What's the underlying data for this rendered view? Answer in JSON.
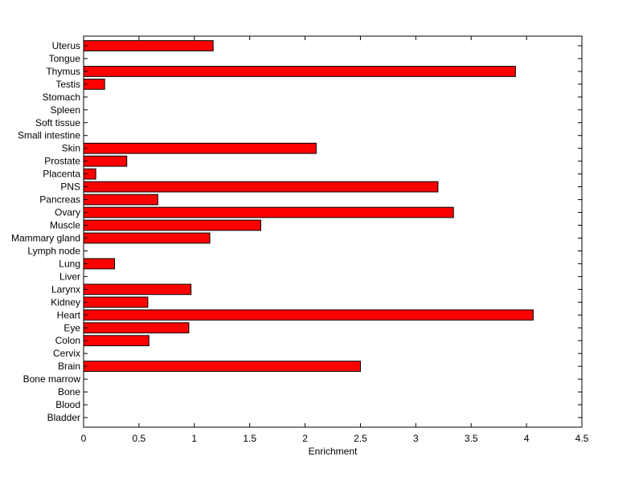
{
  "chart_data": {
    "type": "bar",
    "orientation": "horizontal",
    "xlabel": "Enrichment",
    "ylabel": "",
    "title": "",
    "xlim": [
      0,
      4.5
    ],
    "xticks": [
      "0",
      "0.5",
      "1",
      "1.5",
      "2",
      "2.5",
      "3",
      "3.5",
      "4",
      "4.5"
    ],
    "categories": [
      "Bladder",
      "Blood",
      "Bone",
      "Bone marrow",
      "Brain",
      "Cervix",
      "Colon",
      "Eye",
      "Heart",
      "Kidney",
      "Larynx",
      "Liver",
      "Lung",
      "Lymph node",
      "Mammary gland",
      "Muscle",
      "Ovary",
      "Pancreas",
      "PNS",
      "Placenta",
      "Prostate",
      "Skin",
      "Small intestine",
      "Soft tissue",
      "Spleen",
      "Stomach",
      "Testis",
      "Thymus",
      "Tongue",
      "Uterus"
    ],
    "values": [
      0,
      0,
      0,
      0,
      2.5,
      0,
      0.59,
      0.95,
      4.06,
      0.58,
      0.97,
      0,
      0.28,
      0,
      1.14,
      1.6,
      3.34,
      0.67,
      3.2,
      0.11,
      0.39,
      2.1,
      0,
      0,
      0,
      0,
      0.19,
      3.9,
      0,
      1.17
    ],
    "bar_color": "#ff0000",
    "bar_edge_color": "#000000",
    "grid": false,
    "legend": "none"
  }
}
